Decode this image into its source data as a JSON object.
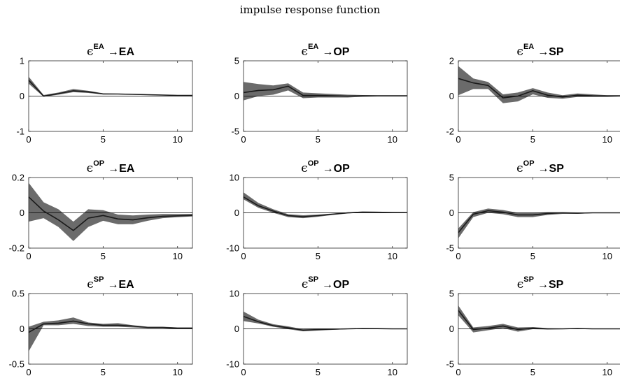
{
  "figure_title": "impulse response function",
  "chart_data": [
    {
      "type": "area",
      "shock": "ϵ",
      "shock_sup": "EA",
      "response": "→EA",
      "xlim": [
        0,
        11
      ],
      "ylim": [
        -1,
        1
      ],
      "xticks": [
        "0",
        "5",
        "10"
      ],
      "yticks": [
        "-1",
        "0",
        "1"
      ],
      "x": [
        0,
        1,
        2,
        3,
        4,
        5,
        6,
        7,
        8,
        9,
        10,
        11
      ],
      "median": [
        0.45,
        0.0,
        0.07,
        0.15,
        0.12,
        0.06,
        0.06,
        0.05,
        0.04,
        0.03,
        0.02,
        0.02
      ],
      "lower": [
        0.35,
        -0.02,
        0.04,
        0.11,
        0.09,
        0.05,
        0.05,
        0.04,
        0.03,
        0.02,
        0.01,
        0.01
      ],
      "upper": [
        0.55,
        0.03,
        0.1,
        0.2,
        0.15,
        0.08,
        0.07,
        0.06,
        0.05,
        0.04,
        0.03,
        0.03
      ]
    },
    {
      "type": "area",
      "shock": "ϵ",
      "shock_sup": "EA",
      "response": "→OP",
      "xlim": [
        0,
        11
      ],
      "ylim": [
        -5,
        5
      ],
      "xticks": [
        "0",
        "5",
        "10"
      ],
      "yticks": [
        "-5",
        "0",
        "5"
      ],
      "x": [
        0,
        1,
        2,
        3,
        4,
        5,
        6,
        7,
        8,
        9,
        10,
        11
      ],
      "median": [
        0.5,
        0.8,
        0.9,
        1.4,
        0.1,
        0.1,
        0.05,
        0.0,
        0.05,
        0.05,
        0.05,
        0.05
      ],
      "lower": [
        -0.6,
        0.0,
        0.2,
        0.8,
        -0.3,
        -0.2,
        -0.2,
        -0.2,
        -0.1,
        -0.05,
        -0.05,
        -0.05
      ],
      "upper": [
        2.0,
        1.7,
        1.5,
        1.8,
        0.5,
        0.4,
        0.3,
        0.2,
        0.15,
        0.1,
        0.1,
        0.1
      ]
    },
    {
      "type": "area",
      "shock": "ϵ",
      "shock_sup": "EA",
      "response": "→SP",
      "xlim": [
        0,
        11
      ],
      "ylim": [
        -2,
        2
      ],
      "xticks": [
        "0",
        "5",
        "10"
      ],
      "yticks": [
        "-2",
        "0",
        "2"
      ],
      "x": [
        0,
        1,
        2,
        3,
        4,
        5,
        6,
        7,
        8,
        9,
        10,
        11
      ],
      "median": [
        1.0,
        0.75,
        0.6,
        -0.1,
        0.0,
        0.3,
        0.05,
        -0.05,
        0.05,
        0.02,
        0.01,
        0.01
      ],
      "lower": [
        0.05,
        0.4,
        0.4,
        -0.4,
        -0.3,
        0.1,
        -0.1,
        -0.15,
        -0.05,
        -0.05,
        -0.05,
        -0.02
      ],
      "upper": [
        1.7,
        1.0,
        0.8,
        0.1,
        0.2,
        0.45,
        0.2,
        0.05,
        0.15,
        0.1,
        0.05,
        0.05
      ]
    },
    {
      "type": "area",
      "shock": "ϵ",
      "shock_sup": "OP",
      "response": "→EA",
      "xlim": [
        0,
        11
      ],
      "ylim": [
        -0.2,
        0.2
      ],
      "xticks": [
        "0",
        "5",
        "10"
      ],
      "yticks": [
        "-0.2",
        "0",
        "0.2"
      ],
      "x": [
        0,
        1,
        2,
        3,
        4,
        5,
        6,
        7,
        8,
        9,
        10,
        11
      ],
      "median": [
        0.09,
        0.01,
        -0.04,
        -0.1,
        -0.03,
        -0.015,
        -0.035,
        -0.04,
        -0.028,
        -0.02,
        -0.017,
        -0.015
      ],
      "lower": [
        -0.05,
        -0.03,
        -0.08,
        -0.16,
        -0.08,
        -0.045,
        -0.065,
        -0.065,
        -0.045,
        -0.03,
        -0.025,
        -0.02
      ],
      "upper": [
        0.17,
        0.06,
        0.02,
        -0.05,
        0.02,
        0.015,
        -0.01,
        -0.015,
        -0.01,
        -0.007,
        -0.007,
        -0.006
      ]
    },
    {
      "type": "area",
      "shock": "ϵ",
      "shock_sup": "OP",
      "response": "→OP",
      "xlim": [
        0,
        11
      ],
      "ylim": [
        -10,
        10
      ],
      "xticks": [
        "0",
        "5",
        "10"
      ],
      "yticks": [
        "-10",
        "0",
        "10"
      ],
      "x": [
        0,
        1,
        2,
        3,
        4,
        5,
        6,
        7,
        8,
        9,
        10,
        11
      ],
      "median": [
        4.5,
        2.0,
        0.5,
        -0.8,
        -1.1,
        -0.8,
        -0.4,
        0.0,
        0.2,
        0.15,
        0.1,
        0.05
      ],
      "lower": [
        3.8,
        1.4,
        0.0,
        -1.2,
        -1.5,
        -1.1,
        -0.6,
        -0.2,
        0.05,
        0.05,
        0.0,
        0.0
      ],
      "upper": [
        5.8,
        2.8,
        1.0,
        -0.4,
        -0.7,
        -0.5,
        -0.2,
        0.15,
        0.35,
        0.3,
        0.2,
        0.1
      ]
    },
    {
      "type": "area",
      "shock": "ϵ",
      "shock_sup": "OP",
      "response": "→SP",
      "xlim": [
        0,
        11
      ],
      "ylim": [
        -5,
        5
      ],
      "xticks": [
        "0",
        "5",
        "10"
      ],
      "yticks": [
        "-5",
        "0",
        "5"
      ],
      "x": [
        0,
        1,
        2,
        3,
        4,
        5,
        6,
        7,
        8,
        9,
        10,
        11
      ],
      "median": [
        -2.8,
        -0.2,
        0.3,
        0.1,
        -0.3,
        -0.3,
        -0.1,
        0.0,
        -0.05,
        0.0,
        0.0,
        0.0
      ],
      "lower": [
        -3.6,
        -0.6,
        0.0,
        -0.2,
        -0.6,
        -0.6,
        -0.3,
        -0.15,
        -0.15,
        -0.05,
        -0.05,
        -0.05
      ],
      "upper": [
        -2.2,
        0.1,
        0.6,
        0.4,
        0.0,
        0.0,
        0.1,
        0.1,
        0.05,
        0.05,
        0.05,
        0.05
      ]
    },
    {
      "type": "area",
      "shock": "ϵ",
      "shock_sup": "SP",
      "response": "→EA",
      "xlim": [
        0,
        11
      ],
      "ylim": [
        -0.5,
        0.5
      ],
      "xticks": [
        "0",
        "5",
        "10"
      ],
      "yticks": [
        "-0.5",
        "0",
        "0.5"
      ],
      "x": [
        0,
        1,
        2,
        3,
        4,
        5,
        6,
        7,
        8,
        9,
        10,
        11
      ],
      "median": [
        -0.05,
        0.07,
        0.08,
        0.11,
        0.07,
        0.05,
        0.05,
        0.04,
        0.02,
        0.02,
        0.01,
        0.01
      ],
      "lower": [
        -0.32,
        0.05,
        0.05,
        0.07,
        0.04,
        0.03,
        0.03,
        0.02,
        0.01,
        0.01,
        0.0,
        0.0
      ],
      "upper": [
        0.03,
        0.1,
        0.12,
        0.16,
        0.09,
        0.07,
        0.08,
        0.05,
        0.03,
        0.03,
        0.02,
        0.02
      ]
    },
    {
      "type": "area",
      "shock": "ϵ",
      "shock_sup": "SP",
      "response": "→OP",
      "xlim": [
        0,
        11
      ],
      "ylim": [
        -10,
        10
      ],
      "xticks": [
        "0",
        "5",
        "10"
      ],
      "yticks": [
        "-10",
        "0",
        "10"
      ],
      "x": [
        0,
        1,
        2,
        3,
        4,
        5,
        6,
        7,
        8,
        9,
        10,
        11
      ],
      "median": [
        3.5,
        2.0,
        0.9,
        0.3,
        -0.4,
        -0.2,
        -0.1,
        0.0,
        0.1,
        0.05,
        0.0,
        0.0
      ],
      "lower": [
        2.2,
        1.5,
        0.6,
        -0.1,
        -0.7,
        -0.5,
        -0.3,
        -0.1,
        0.0,
        0.0,
        -0.05,
        -0.05
      ],
      "upper": [
        4.9,
        2.6,
        1.3,
        0.7,
        -0.1,
        0.1,
        0.1,
        0.1,
        0.2,
        0.1,
        0.05,
        0.05
      ]
    },
    {
      "type": "area",
      "shock": "ϵ",
      "shock_sup": "SP",
      "response": "→SP",
      "xlim": [
        0,
        11
      ],
      "ylim": [
        -5,
        5
      ],
      "xticks": [
        "0",
        "5",
        "10"
      ],
      "yticks": [
        "-5",
        "0",
        "5"
      ],
      "x": [
        0,
        1,
        2,
        3,
        4,
        5,
        6,
        7,
        8,
        9,
        10,
        11
      ],
      "median": [
        2.6,
        -0.1,
        0.1,
        0.4,
        -0.1,
        0.1,
        0.0,
        0.0,
        0.05,
        0.0,
        0.0,
        0.0
      ],
      "lower": [
        1.9,
        -0.5,
        -0.2,
        0.1,
        -0.4,
        -0.05,
        -0.1,
        -0.05,
        0.0,
        -0.05,
        -0.05,
        -0.05
      ],
      "upper": [
        3.3,
        0.2,
        0.4,
        0.7,
        0.2,
        0.25,
        0.1,
        0.05,
        0.1,
        0.05,
        0.05,
        0.05
      ]
    }
  ]
}
